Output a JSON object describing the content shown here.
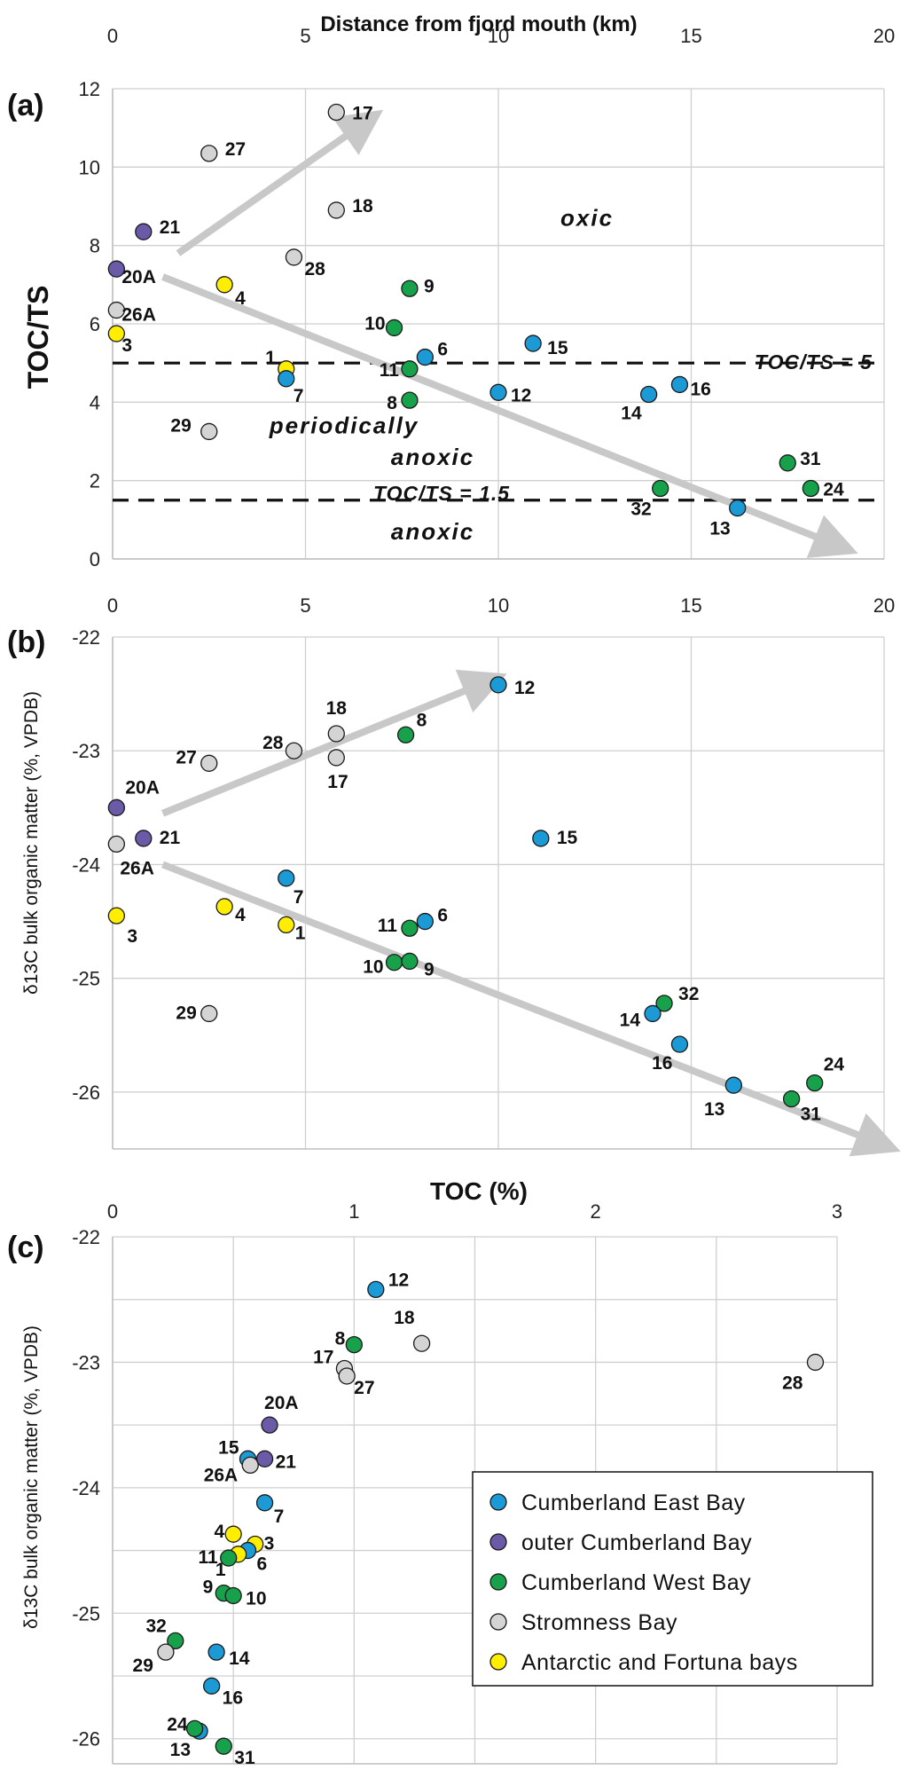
{
  "colors": {
    "Cumberland East Bay": "#1b9ad6",
    "outer Cumberland Bay": "#6a5aa8",
    "Cumberland West Bay": "#16a14a",
    "Stromness Bay": "#d4d4d4",
    "Antarctic and Fortuna bays": "#ffee00",
    "arrow": "#c8c8c8"
  },
  "chart_data": [
    {
      "panel": "(a)",
      "type": "scatter",
      "xlabel": "Distance from fjord mouth (km)",
      "ylabel": "TOC/TS",
      "xlim": [
        0,
        20
      ],
      "ylim": [
        0,
        12
      ],
      "xticks": [
        "0",
        "5",
        "10",
        "15",
        "20"
      ],
      "yticks": [
        "0",
        "2",
        "4",
        "6",
        "8",
        "10",
        "12"
      ],
      "grid": true,
      "thresholds": [
        {
          "value": 5,
          "label": "TOC/TS = 5"
        },
        {
          "value": 1.5,
          "label": "TOC/TS = 1.5"
        }
      ],
      "zones": [
        {
          "label": "oxic",
          "x": 12.3,
          "y": 8.5
        },
        {
          "label": "periodically",
          "x": 6.0,
          "y": 3.2
        },
        {
          "label": "anoxic",
          "x": 8.3,
          "y": 2.4
        },
        {
          "label": "anoxic",
          "x": 8.3,
          "y": 0.5
        }
      ],
      "arrows": [
        {
          "from": [
            1.7,
            7.8
          ],
          "to": [
            6.2,
            10.9
          ]
        },
        {
          "from": [
            1.3,
            7.2
          ],
          "to": [
            18.4,
            0.5
          ]
        }
      ],
      "points": [
        {
          "id": "17",
          "x": 5.8,
          "y": 11.4,
          "group": "Stromness Bay"
        },
        {
          "id": "27",
          "x": 2.5,
          "y": 10.35,
          "group": "Stromness Bay"
        },
        {
          "id": "18",
          "x": 5.8,
          "y": 8.9,
          "group": "Stromness Bay"
        },
        {
          "id": "21",
          "x": 0.8,
          "y": 8.35,
          "group": "outer Cumberland Bay"
        },
        {
          "id": "20A",
          "x": 0.1,
          "y": 7.4,
          "group": "outer Cumberland Bay"
        },
        {
          "id": "28",
          "x": 4.7,
          "y": 7.7,
          "group": "Stromness Bay"
        },
        {
          "id": "4",
          "x": 2.9,
          "y": 7.0,
          "group": "Antarctic and Fortuna bays"
        },
        {
          "id": "9",
          "x": 7.7,
          "y": 6.9,
          "group": "Cumberland West Bay"
        },
        {
          "id": "26A",
          "x": 0.1,
          "y": 6.35,
          "group": "Stromness Bay"
        },
        {
          "id": "10",
          "x": 7.3,
          "y": 5.9,
          "group": "Cumberland West Bay"
        },
        {
          "id": "3",
          "x": 0.1,
          "y": 5.75,
          "group": "Antarctic and Fortuna bays"
        },
        {
          "id": "15",
          "x": 10.9,
          "y": 5.5,
          "group": "Cumberland East Bay"
        },
        {
          "id": "6",
          "x": 8.1,
          "y": 5.15,
          "group": "Cumberland East Bay"
        },
        {
          "id": "1",
          "x": 4.5,
          "y": 4.85,
          "group": "Antarctic and Fortuna bays"
        },
        {
          "id": "11",
          "x": 7.7,
          "y": 4.85,
          "group": "Cumberland West Bay"
        },
        {
          "id": "7",
          "x": 4.5,
          "y": 4.6,
          "group": "Cumberland East Bay"
        },
        {
          "id": "16",
          "x": 14.7,
          "y": 4.45,
          "group": "Cumberland East Bay"
        },
        {
          "id": "12",
          "x": 10.0,
          "y": 4.25,
          "group": "Cumberland East Bay"
        },
        {
          "id": "14",
          "x": 13.9,
          "y": 4.2,
          "group": "Cumberland East Bay"
        },
        {
          "id": "8",
          "x": 7.7,
          "y": 4.05,
          "group": "Cumberland West Bay"
        },
        {
          "id": "29",
          "x": 2.5,
          "y": 3.25,
          "group": "Stromness Bay"
        },
        {
          "id": "31",
          "x": 17.5,
          "y": 2.45,
          "group": "Cumberland West Bay"
        },
        {
          "id": "24",
          "x": 18.1,
          "y": 1.8,
          "group": "Cumberland West Bay"
        },
        {
          "id": "32",
          "x": 14.2,
          "y": 1.8,
          "group": "Cumberland West Bay"
        },
        {
          "id": "13",
          "x": 16.2,
          "y": 1.3,
          "group": "Cumberland East Bay"
        }
      ]
    },
    {
      "panel": "(b)",
      "type": "scatter",
      "xlabel": "",
      "ylabel": "δ13C bulk organic matter (%, VPDB)",
      "xlim": [
        0,
        20
      ],
      "ylim": [
        -26.5,
        -22
      ],
      "xticks": [
        "0",
        "5",
        "10",
        "15",
        "20"
      ],
      "yticks": [
        "-22",
        "-23",
        "-24",
        "-25",
        "-26"
      ],
      "grid": true,
      "arrows": [
        {
          "from": [
            1.3,
            -23.55
          ],
          "to": [
            9.3,
            -22.45
          ]
        },
        {
          "from": [
            1.3,
            -24.0
          ],
          "to": [
            19.5,
            -26.4
          ]
        }
      ],
      "points": [
        {
          "id": "12",
          "x": 10.0,
          "y": -22.42,
          "group": "Cumberland East Bay"
        },
        {
          "id": "8",
          "x": 7.6,
          "y": -22.86,
          "group": "Cumberland West Bay"
        },
        {
          "id": "18",
          "x": 5.8,
          "y": -22.85,
          "group": "Stromness Bay"
        },
        {
          "id": "28",
          "x": 4.7,
          "y": -23.0,
          "group": "Stromness Bay"
        },
        {
          "id": "17",
          "x": 5.8,
          "y": -23.06,
          "group": "Stromness Bay"
        },
        {
          "id": "27",
          "x": 2.5,
          "y": -23.11,
          "group": "Stromness Bay"
        },
        {
          "id": "20A",
          "x": 0.1,
          "y": -23.5,
          "group": "outer Cumberland Bay"
        },
        {
          "id": "21",
          "x": 0.8,
          "y": -23.77,
          "group": "outer Cumberland Bay"
        },
        {
          "id": "15",
          "x": 11.1,
          "y": -23.77,
          "group": "Cumberland East Bay"
        },
        {
          "id": "26A",
          "x": 0.1,
          "y": -23.82,
          "group": "Stromness Bay"
        },
        {
          "id": "7",
          "x": 4.5,
          "y": -24.12,
          "group": "Cumberland East Bay"
        },
        {
          "id": "4",
          "x": 2.9,
          "y": -24.37,
          "group": "Antarctic and Fortuna bays"
        },
        {
          "id": "3",
          "x": 0.1,
          "y": -24.45,
          "group": "Antarctic and Fortuna bays"
        },
        {
          "id": "6",
          "x": 8.1,
          "y": -24.5,
          "group": "Cumberland East Bay"
        },
        {
          "id": "1",
          "x": 4.5,
          "y": -24.53,
          "group": "Antarctic and Fortuna bays"
        },
        {
          "id": "11",
          "x": 7.7,
          "y": -24.56,
          "group": "Cumberland West Bay"
        },
        {
          "id": "10",
          "x": 7.3,
          "y": -24.86,
          "group": "Cumberland West Bay"
        },
        {
          "id": "9",
          "x": 7.7,
          "y": -24.85,
          "group": "Cumberland West Bay"
        },
        {
          "id": "32",
          "x": 14.3,
          "y": -25.22,
          "group": "Cumberland West Bay"
        },
        {
          "id": "14",
          "x": 14.0,
          "y": -25.31,
          "group": "Cumberland East Bay"
        },
        {
          "id": "29",
          "x": 2.5,
          "y": -25.31,
          "group": "Stromness Bay"
        },
        {
          "id": "16",
          "x": 14.7,
          "y": -25.58,
          "group": "Cumberland East Bay"
        },
        {
          "id": "24",
          "x": 18.2,
          "y": -25.92,
          "group": "Cumberland West Bay"
        },
        {
          "id": "13",
          "x": 16.1,
          "y": -25.94,
          "group": "Cumberland East Bay"
        },
        {
          "id": "31",
          "x": 17.6,
          "y": -26.06,
          "group": "Cumberland West Bay"
        }
      ]
    },
    {
      "panel": "(c)",
      "type": "scatter",
      "xlabel": "TOC (%)",
      "ylabel": "δ13C bulk organic matter (%, VPDB)",
      "xlim": [
        0,
        3
      ],
      "ylim": [
        -26.2,
        -22
      ],
      "xticks": [
        "0",
        "1",
        "2",
        "3"
      ],
      "yticks": [
        "-22",
        "-23",
        "-24",
        "-25",
        "-26"
      ],
      "grid": true,
      "legend_position": "bottom-right",
      "points": [
        {
          "id": "12",
          "x": 1.09,
          "y": -22.42,
          "group": "Cumberland East Bay"
        },
        {
          "id": "8",
          "x": 1.0,
          "y": -22.86,
          "group": "Cumberland West Bay"
        },
        {
          "id": "18",
          "x": 1.28,
          "y": -22.85,
          "group": "Stromness Bay"
        },
        {
          "id": "17",
          "x": 0.96,
          "y": -23.05,
          "group": "Stromness Bay"
        },
        {
          "id": "27",
          "x": 0.97,
          "y": -23.11,
          "group": "Stromness Bay"
        },
        {
          "id": "28",
          "x": 2.91,
          "y": -23.0,
          "group": "Stromness Bay"
        },
        {
          "id": "20A",
          "x": 0.65,
          "y": -23.5,
          "group": "outer Cumberland Bay"
        },
        {
          "id": "15",
          "x": 0.56,
          "y": -23.77,
          "group": "Cumberland East Bay"
        },
        {
          "id": "26A",
          "x": 0.57,
          "y": -23.82,
          "group": "Stromness Bay"
        },
        {
          "id": "21",
          "x": 0.63,
          "y": -23.77,
          "group": "outer Cumberland Bay"
        },
        {
          "id": "7",
          "x": 0.63,
          "y": -24.12,
          "group": "Cumberland East Bay"
        },
        {
          "id": "4",
          "x": 0.5,
          "y": -24.37,
          "group": "Antarctic and Fortuna bays"
        },
        {
          "id": "3",
          "x": 0.59,
          "y": -24.45,
          "group": "Antarctic and Fortuna bays"
        },
        {
          "id": "6",
          "x": 0.56,
          "y": -24.5,
          "group": "Cumberland East Bay"
        },
        {
          "id": "1",
          "x": 0.52,
          "y": -24.53,
          "group": "Antarctic and Fortuna bays"
        },
        {
          "id": "11",
          "x": 0.48,
          "y": -24.56,
          "group": "Cumberland West Bay"
        },
        {
          "id": "9",
          "x": 0.46,
          "y": -24.84,
          "group": "Cumberland West Bay"
        },
        {
          "id": "10",
          "x": 0.5,
          "y": -24.86,
          "group": "Cumberland West Bay"
        },
        {
          "id": "32",
          "x": 0.26,
          "y": -25.22,
          "group": "Cumberland West Bay"
        },
        {
          "id": "29",
          "x": 0.22,
          "y": -25.31,
          "group": "Stromness Bay"
        },
        {
          "id": "14",
          "x": 0.43,
          "y": -25.31,
          "group": "Cumberland East Bay"
        },
        {
          "id": "16",
          "x": 0.41,
          "y": -25.58,
          "group": "Cumberland East Bay"
        },
        {
          "id": "13",
          "x": 0.36,
          "y": -25.94,
          "group": "Cumberland East Bay"
        },
        {
          "id": "24",
          "x": 0.34,
          "y": -25.92,
          "group": "Cumberland West Bay"
        },
        {
          "id": "31",
          "x": 0.46,
          "y": -26.06,
          "group": "Cumberland West Bay"
        }
      ]
    }
  ],
  "legend": [
    "Cumberland East Bay",
    "outer Cumberland Bay",
    "Cumberland West Bay",
    "Stromness Bay",
    "Antarctic and Fortuna bays"
  ]
}
